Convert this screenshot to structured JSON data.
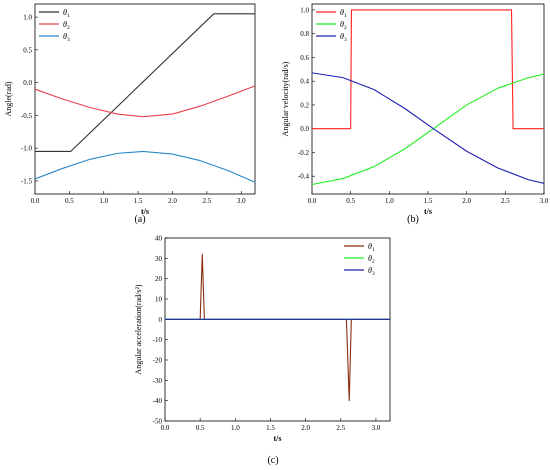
{
  "chart_data": [
    {
      "type": "line",
      "caption": "(a)",
      "xlabel": "t/s",
      "ylabel": "Angle(rad)",
      "xlim": [
        0.0,
        3.2
      ],
      "ylim": [
        -1.7,
        1.2
      ],
      "xticks": [
        "0.0",
        "0.5",
        "1.0",
        "1.5",
        "2.0",
        "2.5",
        "3.0"
      ],
      "yticks": [
        "-1.5",
        "-1.0",
        "-0.5",
        "0.0",
        "0.5",
        "1.0"
      ],
      "legend_position": "top-left",
      "series": [
        {
          "name": "θ1",
          "color": "#333333",
          "x": [
            0.0,
            0.5,
            0.52,
            2.6,
            3.2
          ],
          "y": [
            -1.05,
            -1.05,
            -1.05,
            1.05,
            1.05
          ]
        },
        {
          "name": "θ2",
          "color": "#e8414e",
          "x": [
            0.0,
            0.4,
            0.8,
            1.2,
            1.57,
            2.0,
            2.4,
            2.8,
            3.2
          ],
          "y": [
            -0.1,
            -0.25,
            -0.38,
            -0.48,
            -0.52,
            -0.48,
            -0.36,
            -0.21,
            -0.05
          ]
        },
        {
          "name": "θ3",
          "color": "#2b8ac6",
          "x": [
            0.0,
            0.4,
            0.8,
            1.2,
            1.57,
            2.0,
            2.4,
            2.8,
            3.2
          ],
          "y": [
            -1.47,
            -1.31,
            -1.17,
            -1.08,
            -1.05,
            -1.09,
            -1.19,
            -1.34,
            -1.52
          ]
        }
      ]
    },
    {
      "type": "line",
      "caption": "(b)",
      "xlabel": "t/s",
      "ylabel": "Angular velocity(rad/s)",
      "xlim": [
        0.0,
        3.0
      ],
      "ylim": [
        -0.55,
        1.05
      ],
      "xticks": [
        "0.0",
        "0.5",
        "1.0",
        "1.5",
        "2.0",
        "2.5",
        "3.0"
      ],
      "yticks": [
        "-0.6",
        "-0.4",
        "-0.2",
        "0.0",
        "0.2",
        "0.4",
        "0.6",
        "0.8",
        "1.0"
      ],
      "legend_position": "top-left",
      "series": [
        {
          "name": "θ1",
          "color": "#ff2020",
          "x": [
            0.0,
            0.5,
            0.51,
            2.58,
            2.6,
            3.0
          ],
          "y": [
            0.0,
            0.0,
            1.0,
            1.0,
            0.0,
            0.0
          ]
        },
        {
          "name": "θ2",
          "color": "#22ee22",
          "x": [
            0.0,
            0.4,
            0.8,
            1.2,
            1.57,
            2.0,
            2.4,
            2.8,
            3.0
          ],
          "y": [
            -0.47,
            -0.42,
            -0.32,
            -0.17,
            0.0,
            0.2,
            0.34,
            0.43,
            0.46
          ]
        },
        {
          "name": "θ3",
          "color": "#1f1fb4",
          "x": [
            0.0,
            0.4,
            0.8,
            1.2,
            1.57,
            2.0,
            2.4,
            2.8,
            3.0
          ],
          "y": [
            0.47,
            0.43,
            0.33,
            0.17,
            0.0,
            -0.19,
            -0.33,
            -0.43,
            -0.46
          ]
        }
      ]
    },
    {
      "type": "line",
      "caption": "(c)",
      "xlabel": "t/s",
      "ylabel": "Angular acceleration(rad/s²)",
      "xlim": [
        0.0,
        3.2
      ],
      "ylim": [
        -50,
        40
      ],
      "xticks": [
        "0.0",
        "0.5",
        "1.0",
        "1.5",
        "2.0",
        "2.5",
        "3.0"
      ],
      "yticks": [
        "-50",
        "-40",
        "-30",
        "-20",
        "-10",
        "0",
        "10",
        "20",
        "30",
        "40"
      ],
      "legend_position": "top-right",
      "series": [
        {
          "name": "θ1",
          "color": "#8b2e0f",
          "x": [
            0.0,
            0.5,
            0.53,
            0.56,
            2.58,
            2.62,
            2.65,
            3.2
          ],
          "y": [
            0.0,
            0.0,
            32.0,
            0.0,
            0.0,
            -40.0,
            0.0,
            0.0
          ]
        },
        {
          "name": "θ2",
          "color": "#22ee22",
          "x": [
            0.0,
            3.2
          ],
          "y": [
            0.0,
            0.0
          ]
        },
        {
          "name": "θ3",
          "color": "#1f1fb4",
          "x": [
            0.0,
            3.2
          ],
          "y": [
            0.0,
            0.0
          ]
        }
      ]
    }
  ]
}
